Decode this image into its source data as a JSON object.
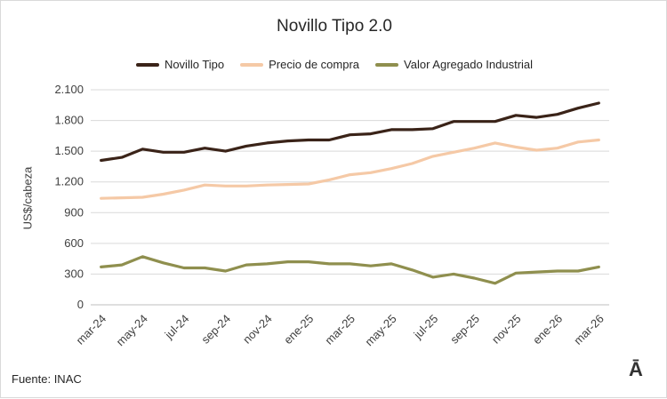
{
  "chart_data": {
    "type": "line",
    "title": "Novillo Tipo 2.0",
    "ylabel": "US$/cabeza",
    "xlabel": "",
    "ylim": [
      0,
      2100
    ],
    "yticks": [
      0,
      300,
      600,
      900,
      1200,
      1500,
      1800,
      2100
    ],
    "ytick_labels": [
      "0",
      "300",
      "600",
      "900",
      "1.200",
      "1.500",
      "1.800",
      "2.100"
    ],
    "x": [
      "mar-24",
      "abr-24",
      "may-24",
      "jun-24",
      "jul-24",
      "ago-24",
      "sep-24",
      "oct-24",
      "nov-24",
      "dic-24",
      "ene-25",
      "feb-25",
      "mar-25",
      "abr-25",
      "may-25",
      "jun-25",
      "jul-25",
      "ago-25",
      "sep-25",
      "oct-25",
      "nov-25",
      "dic-25",
      "ene-26",
      "feb-26",
      "mar-26"
    ],
    "x_tick_labels": [
      "mar-24",
      "may-24",
      "jul-24",
      "sep-24",
      "nov-24",
      "ene-25",
      "mar-25",
      "may-25",
      "jul-25",
      "sep-25",
      "nov-25",
      "ene-26",
      "mar-26"
    ],
    "grid": true,
    "legend_position": "top",
    "series": [
      {
        "name": "Novillo Tipo",
        "color": "#3a2318",
        "values": [
          1410,
          1440,
          1520,
          1490,
          1490,
          1530,
          1500,
          1550,
          1580,
          1600,
          1610,
          1610,
          1660,
          1670,
          1710,
          1710,
          1720,
          1790,
          1790,
          1790,
          1850,
          1830,
          1860,
          1920,
          1970
        ]
      },
      {
        "name": "Precio de compra",
        "color": "#f5c9a6",
        "values": [
          1040,
          1045,
          1050,
          1080,
          1120,
          1170,
          1160,
          1160,
          1170,
          1175,
          1180,
          1220,
          1270,
          1290,
          1330,
          1380,
          1450,
          1490,
          1530,
          1580,
          1540,
          1510,
          1530,
          1590,
          1610
        ]
      },
      {
        "name": "Valor Agregado Industrial",
        "color": "#8f8f4e",
        "values": [
          370,
          390,
          470,
          410,
          360,
          360,
          330,
          390,
          400,
          420,
          420,
          400,
          400,
          380,
          400,
          340,
          270,
          300,
          260,
          210,
          310,
          320,
          330,
          330,
          370
        ]
      }
    ]
  },
  "source_text": "Fuente: INAC",
  "brand_mark": "Ā"
}
